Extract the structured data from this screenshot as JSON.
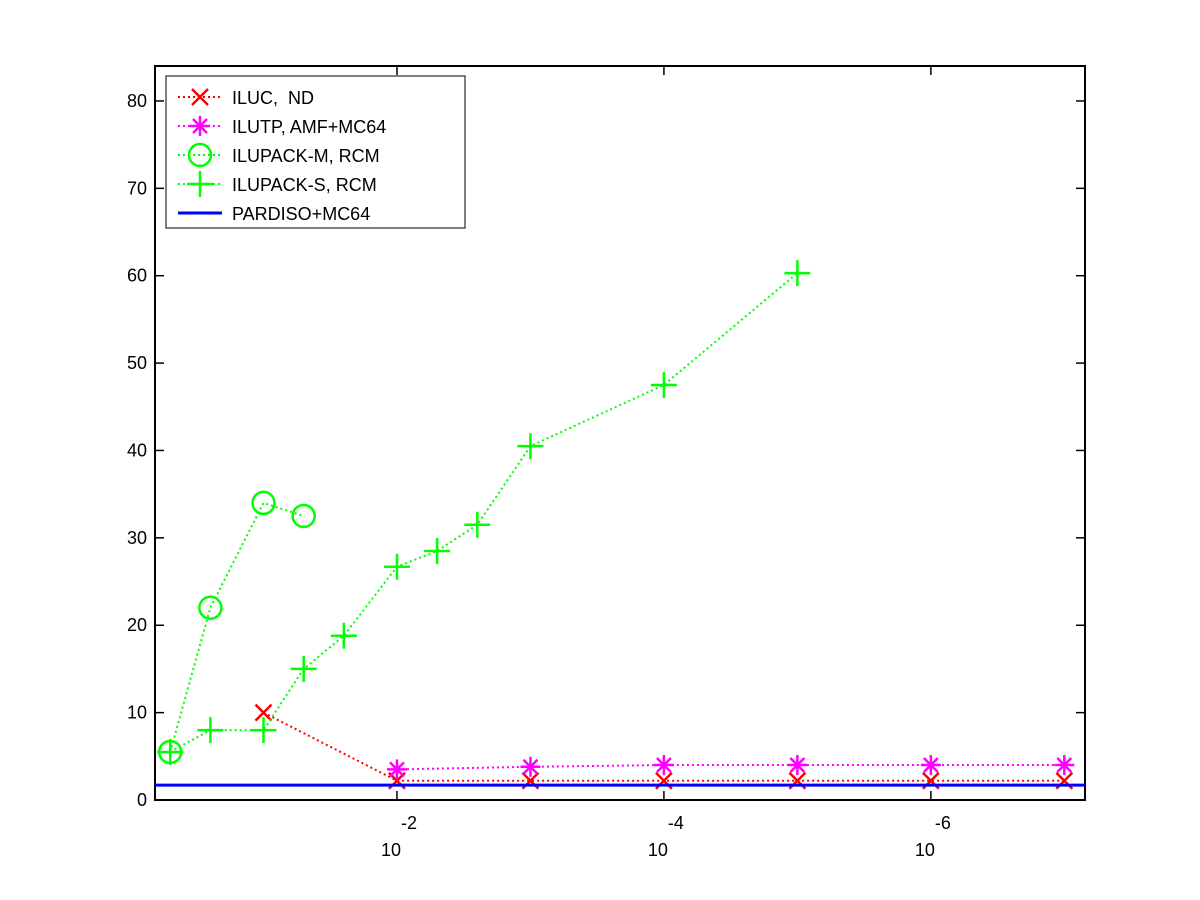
{
  "chart_data": {
    "type": "line",
    "log_x": true,
    "xlim": [
      0.65,
      7e-08
    ],
    "ylim": [
      0,
      84
    ],
    "xticks": [
      {
        "value": 0.01,
        "label": "10",
        "exponent": "-2"
      },
      {
        "value": 0.0001,
        "label": "10",
        "exponent": "-4"
      },
      {
        "value": 1e-06,
        "label": "10",
        "exponent": "-6"
      }
    ],
    "yticks": [
      0,
      10,
      20,
      30,
      40,
      50,
      60,
      70,
      80
    ],
    "legend": "upper left",
    "series": [
      {
        "name": "ILUC,  ND",
        "color": "#ff0000",
        "marker": "x",
        "linestyle": "dotted",
        "x": [
          0.1,
          0.01,
          0.001,
          0.0001,
          1e-05,
          1e-06,
          1e-07
        ],
        "values": [
          10,
          2.2,
          2.2,
          2.2,
          2.2,
          2.2,
          2.2
        ]
      },
      {
        "name": "ILUTP, AMF+MC64",
        "color": "#ff00ff",
        "marker": "*",
        "linestyle": "dotted",
        "x": [
          0.01,
          0.001,
          0.0001,
          1e-05,
          1e-06,
          1e-07
        ],
        "values": [
          3.5,
          3.8,
          4,
          4,
          4,
          4
        ]
      },
      {
        "name": "ILUPACK-M, RCM",
        "color": "#00ff00",
        "marker": "o",
        "linestyle": "dotted",
        "x": [
          0.5,
          0.25,
          0.1,
          0.05
        ],
        "values": [
          5.5,
          22,
          34,
          32.5
        ]
      },
      {
        "name": "ILUPACK-S, RCM",
        "color": "#00ff00",
        "marker": "+",
        "linestyle": "dotted",
        "x": [
          0.5,
          0.25,
          0.1,
          0.05,
          0.025,
          0.01,
          0.005,
          0.0025,
          0.001,
          0.0001,
          1e-05
        ],
        "values": [
          5.5,
          8,
          8,
          15,
          18.8,
          26.7,
          28.5,
          31.5,
          40.5,
          47.5,
          60.3
        ]
      },
      {
        "name": "PARDISO+MC64",
        "color": "#0000ff",
        "marker": "none",
        "linestyle": "solid",
        "x": [
          0.65,
          7e-08
        ],
        "values": [
          1.7,
          1.7
        ]
      }
    ]
  }
}
